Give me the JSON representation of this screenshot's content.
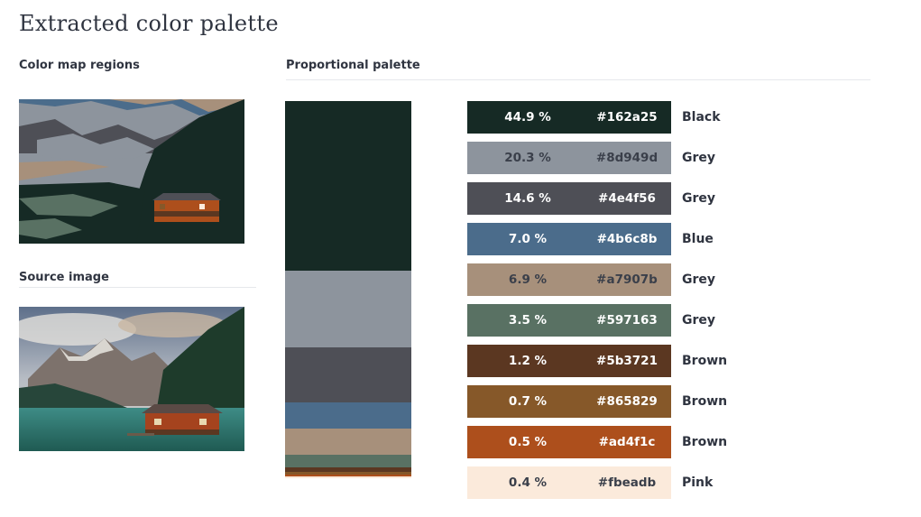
{
  "page": {
    "title": "Extracted color palette",
    "color_map_heading": "Color map regions",
    "proportional_heading": "Proportional palette",
    "source_heading": "Source image"
  },
  "palette": [
    {
      "percent": "44.9 %",
      "hex": "#162a25",
      "name": "Black",
      "share": 44.9,
      "text_color": "dark"
    },
    {
      "percent": "20.3 %",
      "hex": "#8d949d",
      "name": "Grey",
      "share": 20.3,
      "text_color": "light"
    },
    {
      "percent": "14.6 %",
      "hex": "#4e4f56",
      "name": "Grey",
      "share": 14.6,
      "text_color": "dark"
    },
    {
      "percent": "7.0 %",
      "hex": "#4b6c8b",
      "name": "Blue",
      "share": 7.0,
      "text_color": "dark"
    },
    {
      "percent": "6.9 %",
      "hex": "#a7907b",
      "name": "Grey",
      "share": 6.9,
      "text_color": "light"
    },
    {
      "percent": "3.5 %",
      "hex": "#597163",
      "name": "Grey",
      "share": 3.5,
      "text_color": "dark"
    },
    {
      "percent": "1.2 %",
      "hex": "#5b3721",
      "name": "Brown",
      "share": 1.2,
      "text_color": "dark"
    },
    {
      "percent": "0.7 %",
      "hex": "#865829",
      "name": "Brown",
      "share": 0.7,
      "text_color": "dark"
    },
    {
      "percent": "0.5 %",
      "hex": "#ad4f1c",
      "name": "Brown",
      "share": 0.5,
      "text_color": "dark"
    },
    {
      "percent": "0.4 %",
      "hex": "#fbeadb",
      "name": "Pink",
      "share": 0.4,
      "text_color": "light"
    }
  ]
}
